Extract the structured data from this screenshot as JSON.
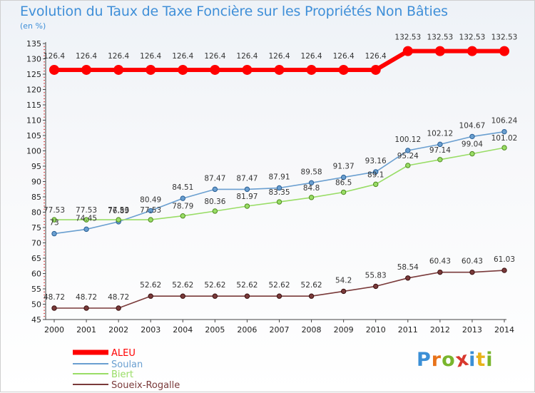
{
  "header": {
    "title": "Evolution du Taux de Taxe Foncière sur les Propriétés Non Bâties",
    "unit": "(en %)"
  },
  "logo": {
    "letters": [
      "P",
      "r",
      "o",
      "x",
      "i",
      "t",
      "i"
    ],
    "colors": [
      "#3b8fd6",
      "#e8731a",
      "#79b52c",
      "#d8382e",
      "#3b8fd6",
      "#e8b21a",
      "#79b52c"
    ]
  },
  "chart_data": {
    "type": "line",
    "title": "Evolution du Taux de Taxe Foncière sur les Propriétés Non Bâties",
    "ylabel": "(en %)",
    "xlabel": "",
    "categories": [
      "2000",
      "2001",
      "2002",
      "2003",
      "2004",
      "2005",
      "2006",
      "2007",
      "2008",
      "2009",
      "2010",
      "2011",
      "2012",
      "2013",
      "2014"
    ],
    "ylim": [
      45,
      135
    ],
    "yticks": [
      45,
      50,
      55,
      60,
      65,
      70,
      75,
      80,
      85,
      90,
      95,
      100,
      105,
      110,
      115,
      120,
      125,
      130,
      135
    ],
    "grid": false,
    "legend_position": "bottom-left",
    "series": [
      {
        "name": "ALEU",
        "color": "#ff0000",
        "values": [
          126.4,
          126.4,
          126.4,
          126.4,
          126.4,
          126.4,
          126.4,
          126.4,
          126.4,
          126.4,
          126.4,
          132.53,
          132.53,
          132.53,
          132.53
        ],
        "labels": [
          "126.4",
          "126.4",
          "126.4",
          "126.4",
          "126.4",
          "126.4",
          "126.4",
          "126.4",
          "126.4",
          "126.4",
          "126.4",
          "132.53",
          "132.53",
          "132.53",
          "132.53"
        ]
      },
      {
        "name": "Soulan",
        "color": "#6a9fd0",
        "values": [
          73,
          74.45,
          76.89,
          80.49,
          84.51,
          87.47,
          87.47,
          87.91,
          89.58,
          91.37,
          93.16,
          100.12,
          102.12,
          104.67,
          106.24
        ],
        "labels": [
          "73",
          "74.45",
          "76.89",
          "80.49",
          "84.51",
          "87.47",
          "87.47",
          "87.91",
          "89.58",
          "91.37",
          "93.16",
          "100.12",
          "102.12",
          "104.67",
          "106.24"
        ]
      },
      {
        "name": "Biert",
        "color": "#99dd66",
        "values": [
          77.53,
          77.53,
          77.53,
          77.53,
          78.79,
          80.36,
          81.97,
          83.35,
          84.8,
          86.5,
          89.1,
          95.24,
          97.14,
          99.04,
          101.02
        ],
        "labels": [
          "77.53",
          "77.53",
          "77.53",
          "77.53",
          "78.79",
          "80.36",
          "81.97",
          "83.35",
          "84.8",
          "86.5",
          "89.1",
          "95.24",
          "97.14",
          "99.04",
          "101.02"
        ]
      },
      {
        "name": "Soueix-Rogalle",
        "color": "#7a3a3a",
        "values": [
          48.72,
          48.72,
          48.72,
          52.62,
          52.62,
          52.62,
          52.62,
          52.62,
          52.62,
          54.2,
          55.83,
          58.54,
          60.43,
          60.43,
          61.03
        ],
        "labels": [
          "48.72",
          "48.72",
          "48.72",
          "52.62",
          "52.62",
          "52.62",
          "52.62",
          "52.62",
          "52.62",
          "54.2",
          "55.83",
          "58.54",
          "60.43",
          "60.43",
          "61.03"
        ]
      }
    ]
  }
}
